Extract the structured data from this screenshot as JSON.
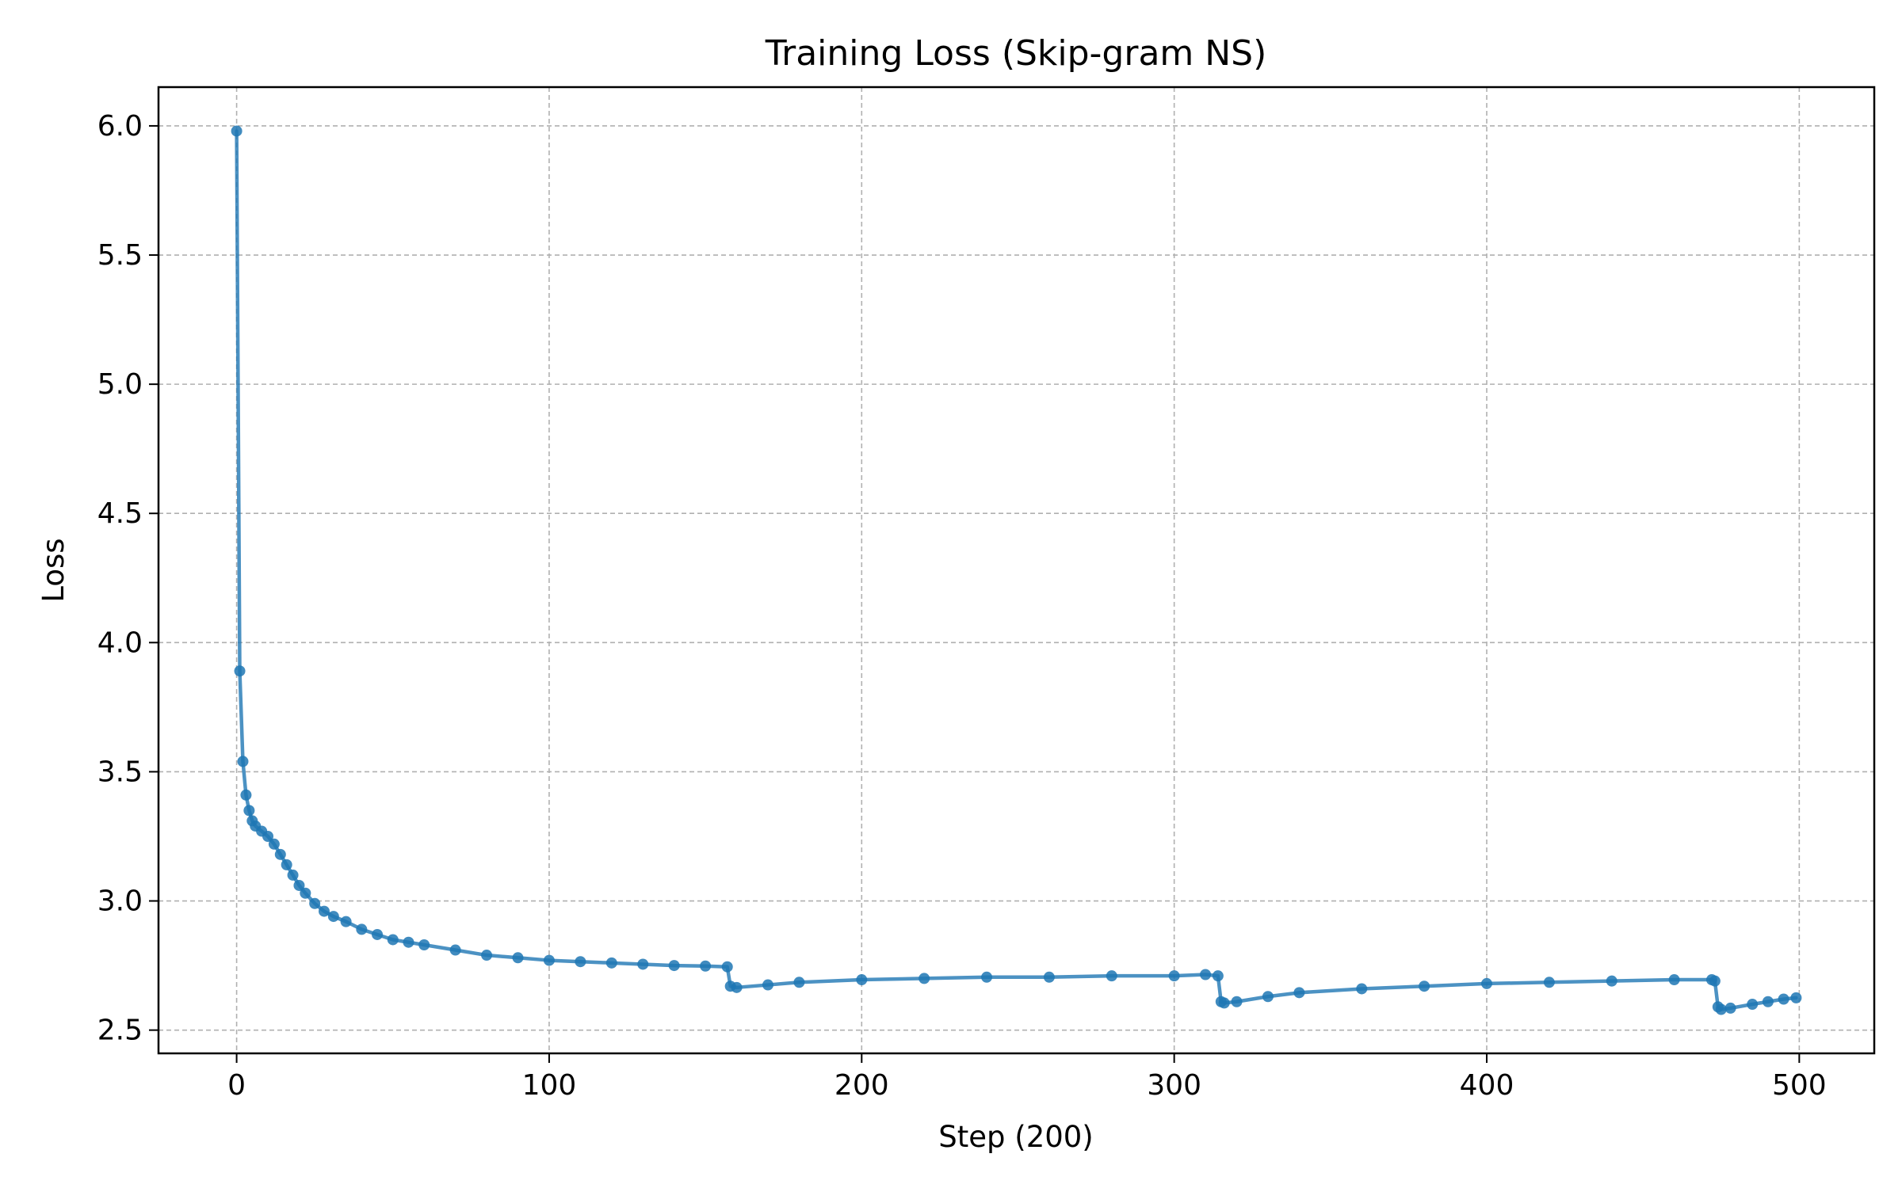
{
  "chart_data": {
    "type": "line",
    "title": "Training Loss (Skip-gram NS)",
    "xlabel": "Step (200)",
    "ylabel": "Loss",
    "xlim": [
      -25,
      524
    ],
    "ylim": [
      2.41,
      6.15
    ],
    "xticks": [
      0,
      100,
      200,
      300,
      400,
      500
    ],
    "yticks": [
      2.5,
      3.0,
      3.5,
      4.0,
      4.5,
      5.0,
      5.5,
      6.0
    ],
    "xtick_labels": [
      "0",
      "100",
      "200",
      "300",
      "400",
      "500"
    ],
    "ytick_labels": [
      "2.5",
      "3.0",
      "3.5",
      "4.0",
      "4.5",
      "5.0",
      "5.5",
      "6.0"
    ],
    "grid": true,
    "legend": "none",
    "series": [
      {
        "color": "#1f77b4",
        "marker": "circle",
        "x": [
          0,
          1,
          2,
          3,
          4,
          5,
          6,
          8,
          10,
          12,
          14,
          16,
          18,
          20,
          22,
          25,
          28,
          31,
          35,
          40,
          45,
          50,
          55,
          60,
          70,
          80,
          90,
          100,
          110,
          120,
          130,
          140,
          150,
          157,
          158,
          160,
          170,
          180,
          200,
          220,
          240,
          260,
          280,
          300,
          310,
          314,
          315,
          316,
          320,
          330,
          340,
          360,
          380,
          400,
          420,
          440,
          460,
          472,
          473,
          474,
          475,
          478,
          485,
          490,
          495,
          499
        ],
        "y": [
          5.98,
          3.89,
          3.54,
          3.41,
          3.35,
          3.31,
          3.29,
          3.27,
          3.25,
          3.22,
          3.18,
          3.14,
          3.1,
          3.06,
          3.03,
          2.99,
          2.96,
          2.94,
          2.92,
          2.89,
          2.87,
          2.85,
          2.84,
          2.83,
          2.81,
          2.79,
          2.78,
          2.77,
          2.765,
          2.76,
          2.755,
          2.75,
          2.748,
          2.745,
          2.67,
          2.665,
          2.675,
          2.685,
          2.695,
          2.7,
          2.705,
          2.705,
          2.71,
          2.71,
          2.715,
          2.71,
          2.61,
          2.605,
          2.61,
          2.63,
          2.645,
          2.66,
          2.67,
          2.68,
          2.685,
          2.69,
          2.695,
          2.695,
          2.69,
          2.59,
          2.58,
          2.585,
          2.6,
          2.61,
          2.62,
          2.625
        ]
      }
    ]
  }
}
